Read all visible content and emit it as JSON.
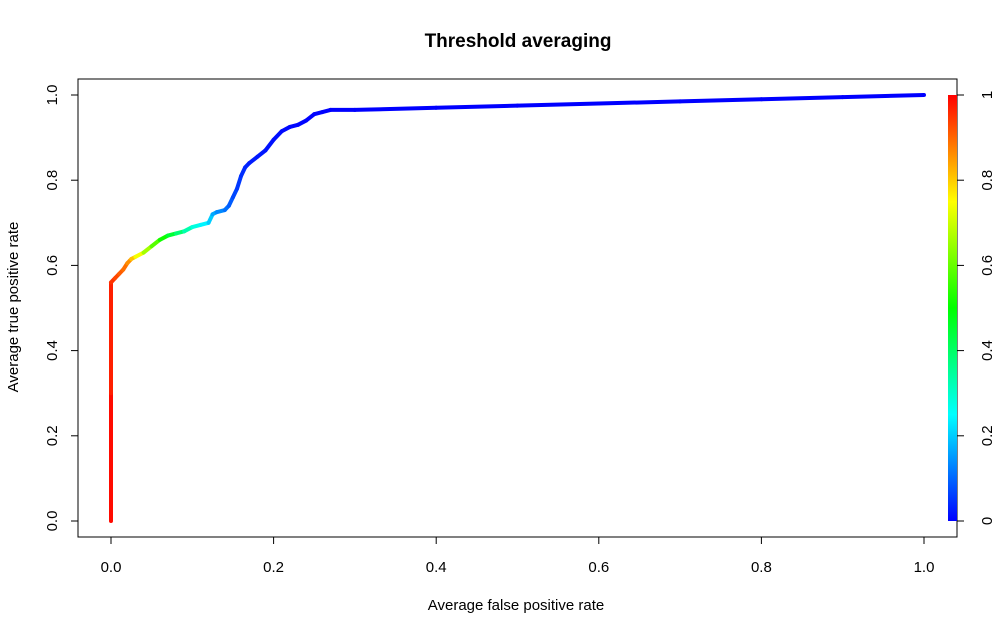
{
  "chart_data": {
    "type": "line",
    "title": "Threshold averaging",
    "xlabel": "Average false positive rate",
    "ylabel": "Average true positive rate",
    "xlim": [
      0,
      1
    ],
    "ylim": [
      0,
      1
    ],
    "x_ticks": [
      "0.0",
      "0.2",
      "0.4",
      "0.6",
      "0.8",
      "1.0"
    ],
    "y_ticks": [
      "0.0",
      "0.2",
      "0.4",
      "0.6",
      "0.8",
      "1.0"
    ],
    "grid": false,
    "colorkey": {
      "position": "right",
      "ticks": [
        "0",
        "0.2",
        "0.4",
        "0.6",
        "0.8",
        "1"
      ],
      "range": [
        0,
        1
      ],
      "colormap": "rainbow",
      "colors": [
        "#0000ff",
        "#00ffff",
        "#00ff00",
        "#ffff00",
        "#ff0000"
      ]
    },
    "series": [
      {
        "x": [
          0.0,
          0.0,
          0.0,
          0.005,
          0.01,
          0.015,
          0.02,
          0.025,
          0.03,
          0.04,
          0.05,
          0.06,
          0.07,
          0.08,
          0.09,
          0.1,
          0.11,
          0.12,
          0.125,
          0.13,
          0.14,
          0.145,
          0.15,
          0.155,
          0.16,
          0.165,
          0.17,
          0.18,
          0.19,
          0.2,
          0.21,
          0.22,
          0.23,
          0.24,
          0.25,
          0.26,
          0.27,
          0.3,
          0.4,
          0.5,
          0.6,
          0.7,
          0.8,
          0.9,
          1.0
        ],
        "y": [
          0.0,
          0.3,
          0.56,
          0.57,
          0.58,
          0.59,
          0.605,
          0.615,
          0.62,
          0.63,
          0.645,
          0.66,
          0.67,
          0.675,
          0.68,
          0.69,
          0.695,
          0.7,
          0.72,
          0.725,
          0.73,
          0.74,
          0.76,
          0.78,
          0.81,
          0.83,
          0.84,
          0.855,
          0.87,
          0.895,
          0.915,
          0.925,
          0.93,
          0.94,
          0.955,
          0.96,
          0.965,
          0.965,
          0.97,
          0.975,
          0.98,
          0.985,
          0.99,
          0.995,
          1.0
        ],
        "cutoff": [
          1.0,
          0.98,
          0.96,
          0.94,
          0.92,
          0.9,
          0.88,
          0.84,
          0.78,
          0.7,
          0.62,
          0.55,
          0.48,
          0.42,
          0.36,
          0.3,
          0.26,
          0.22,
          0.18,
          0.15,
          0.12,
          0.1,
          0.08,
          0.06,
          0.05,
          0.04,
          0.03,
          0.025,
          0.02,
          0.015,
          0.01,
          0.008,
          0.006,
          0.004,
          0.002,
          0.001,
          0.0,
          0.0,
          0.0,
          0.0,
          0.0,
          0.0,
          0.0,
          0.0,
          0.0
        ]
      }
    ]
  }
}
